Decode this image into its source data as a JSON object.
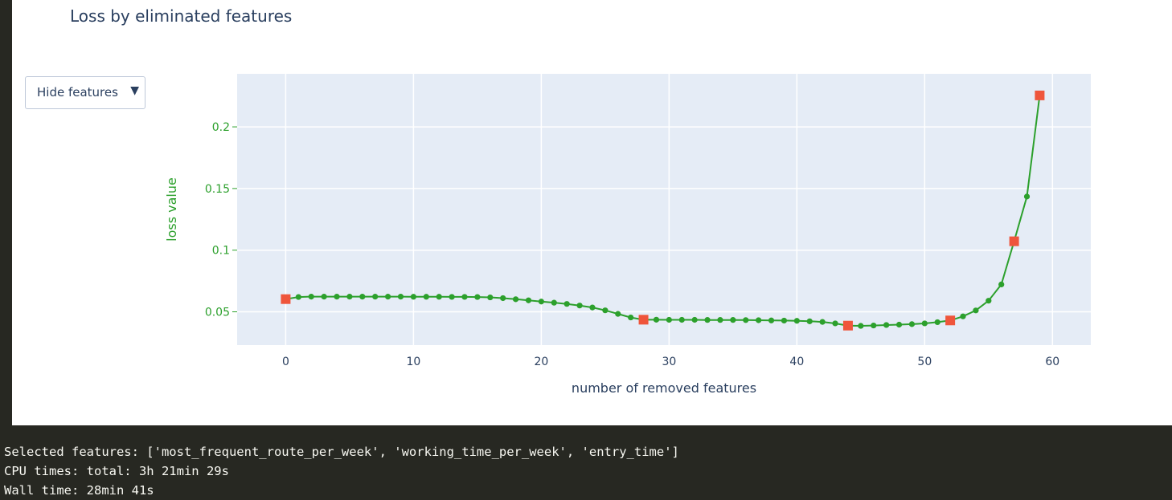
{
  "chart_title": "Loss by eliminated features",
  "dropdown": {
    "label": "Hide features",
    "arrow": "▼"
  },
  "output": {
    "line1": "Selected features: ['most_frequent_route_per_week', 'working_time_per_week', 'entry_time']",
    "line2": "CPU times: total: 3h 21min 29s",
    "line3": "Wall time: 28min 41s"
  },
  "colors": {
    "plot_background": "#e5ecf6",
    "line": "#2ca02c",
    "highlight_marker": "#ef553b",
    "axis_text": "#2a3f5f",
    "y_axis_text": "#2ca02c"
  },
  "chart_data": {
    "type": "line",
    "title": "Loss by eliminated features",
    "xlabel": "number of removed features",
    "ylabel": "loss value",
    "xlim": [
      -3.8,
      63
    ],
    "ylim": [
      0.023,
      0.243
    ],
    "x_ticks": [
      0,
      10,
      20,
      30,
      40,
      50,
      60
    ],
    "y_ticks": [
      0.05,
      0.1,
      0.15,
      0.2
    ],
    "y_tick_labels": [
      "0.05",
      "0.1",
      "0.15",
      "0.2"
    ],
    "grid": true,
    "series": [
      {
        "marker": "circle",
        "x": [
          0,
          1,
          2,
          3,
          4,
          5,
          6,
          7,
          8,
          9,
          10,
          11,
          12,
          13,
          14,
          15,
          16,
          17,
          18,
          19,
          20,
          21,
          22,
          23,
          24,
          25,
          26,
          27,
          28,
          29,
          30,
          31,
          32,
          33,
          34,
          35,
          36,
          37,
          38,
          39,
          40,
          41,
          42,
          43,
          44,
          45,
          46,
          47,
          48,
          49,
          50,
          51,
          52,
          53,
          54,
          55,
          56,
          57,
          58,
          59
        ],
        "y": [
          0.0603,
          0.062,
          0.0623,
          0.0623,
          0.0623,
          0.0623,
          0.0623,
          0.0623,
          0.0623,
          0.0623,
          0.0622,
          0.0622,
          0.0622,
          0.0621,
          0.0621,
          0.062,
          0.0617,
          0.0611,
          0.0602,
          0.0593,
          0.0583,
          0.0574,
          0.0564,
          0.0551,
          0.0535,
          0.0512,
          0.0483,
          0.0454,
          0.0436,
          0.0436,
          0.0435,
          0.0435,
          0.0435,
          0.0434,
          0.0434,
          0.0434,
          0.0433,
          0.0432,
          0.043,
          0.0429,
          0.0427,
          0.0423,
          0.0418,
          0.0406,
          0.0388,
          0.0386,
          0.0389,
          0.0393,
          0.0396,
          0.04,
          0.0406,
          0.0416,
          0.043,
          0.0463,
          0.0511,
          0.059,
          0.0722,
          0.1072,
          0.1435,
          0.2255
        ]
      }
    ],
    "highlighted_points": {
      "marker": "square",
      "x": [
        0,
        28,
        44,
        52,
        57,
        59
      ],
      "y": [
        0.0603,
        0.0436,
        0.0388,
        0.043,
        0.1072,
        0.2255
      ]
    }
  }
}
